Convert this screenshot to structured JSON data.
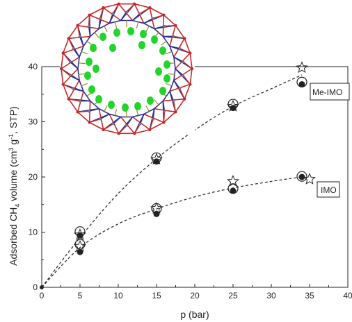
{
  "chart_data": {
    "type": "scatter",
    "xlabel": "p (bar)",
    "ylabel_parts": {
      "main": "Adsorbed CH",
      "sub": "4",
      "mid": " volume (cm",
      "sup": "3",
      "end": " g",
      "sup2": "-1",
      "tail": ", STP)"
    },
    "xlim": [
      0,
      40
    ],
    "ylim": [
      0,
      40
    ],
    "xticks": [
      "0",
      "5",
      "10",
      "15",
      "20",
      "25",
      "30",
      "35",
      "40"
    ],
    "yticks": [
      "0",
      "10",
      "20",
      "30",
      "40"
    ],
    "series": [
      {
        "name": "Me-IMO",
        "fit_curve": [
          [
            0,
            0
          ],
          [
            5,
            9
          ],
          [
            10,
            17
          ],
          [
            15,
            23.3
          ],
          [
            20,
            28.5
          ],
          [
            25,
            32.8
          ],
          [
            30,
            36
          ],
          [
            34,
            38.5
          ]
        ],
        "stars": [
          [
            5,
            9.5
          ],
          [
            15,
            23.2
          ],
          [
            25,
            32.8
          ],
          [
            34,
            39.8
          ]
        ],
        "filled_circles": [
          [
            5,
            9.4
          ],
          [
            15,
            22.8
          ],
          [
            25,
            32.5
          ],
          [
            34,
            36.8
          ]
        ],
        "open_circles": [
          [
            5,
            10.1
          ],
          [
            15,
            23.5
          ],
          [
            25,
            33.2
          ],
          [
            34,
            37.2
          ]
        ]
      },
      {
        "name": "IMO",
        "fit_curve": [
          [
            0,
            0
          ],
          [
            5,
            7.2
          ],
          [
            10,
            11.5
          ],
          [
            15,
            14.2
          ],
          [
            20,
            16.4
          ],
          [
            25,
            18
          ],
          [
            30,
            19.2
          ],
          [
            34,
            20
          ]
        ],
        "stars": [
          [
            5,
            7.4
          ],
          [
            15,
            14.3
          ],
          [
            25,
            19.2
          ],
          [
            35,
            19.6
          ]
        ],
        "filled_circles": [
          [
            5,
            6.4
          ],
          [
            15,
            13.3
          ],
          [
            25,
            17.5
          ],
          [
            34,
            20
          ]
        ],
        "open_circles": [
          [
            5,
            7.8
          ],
          [
            15,
            14.3
          ],
          [
            25,
            17.9
          ],
          [
            34,
            20.1
          ]
        ]
      }
    ],
    "origin_point": [
      0,
      0
    ]
  },
  "legend": {
    "me_imo": "Me-IMO",
    "imo": "IMO"
  },
  "inset": {
    "bead_color": "#22d52a",
    "framework_colors": [
      "#2d2d8f",
      "#c62828",
      "#7a7a7a"
    ]
  }
}
